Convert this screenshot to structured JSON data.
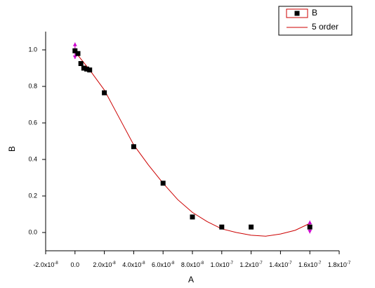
{
  "chart_data": {
    "type": "scatter",
    "x_label": "A",
    "y_label": "B",
    "xlim": [
      -2e-08,
      1.8e-07
    ],
    "ylim": [
      -0.1,
      1.1
    ],
    "xticks": [
      {
        "value": -2e-08,
        "label": "-2.0x10",
        "sup": "-8"
      },
      {
        "value": 0,
        "label": "0.0"
      },
      {
        "value": 2e-08,
        "label": "2.0x10",
        "sup": "-8"
      },
      {
        "value": 4e-08,
        "label": "4.0x10",
        "sup": "-8"
      },
      {
        "value": 6e-08,
        "label": "6.0x10",
        "sup": "-8"
      },
      {
        "value": 8e-08,
        "label": "8.0x10",
        "sup": "-8"
      },
      {
        "value": 1e-07,
        "label": "1.0x10",
        "sup": "-7"
      },
      {
        "value": 1.2e-07,
        "label": "1.2x10",
        "sup": "-7"
      },
      {
        "value": 1.4e-07,
        "label": "1.4x10",
        "sup": "-7"
      },
      {
        "value": 1.6e-07,
        "label": "1.6x10",
        "sup": "-7"
      },
      {
        "value": 1.8e-07,
        "label": "1.8x10",
        "sup": "-7"
      }
    ],
    "yticks": [
      {
        "value": 0,
        "label": "0.0"
      },
      0.2,
      0.4,
      0.6,
      0.8,
      {
        "value": 1,
        "label": "1.0"
      }
    ],
    "series": [
      {
        "name": "B",
        "style": "markers",
        "color": "#000000",
        "error_color": "#cc00cc",
        "x": [
          0,
          2e-09,
          4e-09,
          6e-09,
          8e-09,
          1e-08,
          2e-08,
          4e-08,
          6e-08,
          8e-08,
          1e-07,
          1.2e-07,
          1.6e-07
        ],
        "values": [
          0.995,
          0.98,
          0.925,
          0.9,
          0.895,
          0.89,
          0.765,
          0.47,
          0.27,
          0.085,
          0.03,
          0.03,
          0.03
        ],
        "errors": [
          0.045,
          null,
          null,
          null,
          null,
          null,
          null,
          null,
          null,
          null,
          null,
          null,
          0.035
        ]
      },
      {
        "name": "5 order",
        "style": "line",
        "color": "#cc0000",
        "x": [
          0,
          1e-08,
          2e-08,
          3e-08,
          4e-08,
          5e-08,
          6e-08,
          7e-08,
          8e-08,
          9e-08,
          1e-07,
          1.1e-07,
          1.2e-07,
          1.3e-07,
          1.4e-07,
          1.5e-07,
          1.6e-07
        ],
        "values": [
          0.99,
          0.89,
          0.78,
          0.63,
          0.48,
          0.37,
          0.27,
          0.18,
          0.11,
          0.06,
          0.02,
          0,
          -0.015,
          -0.02,
          -0.008,
          0.012,
          0.05
        ]
      }
    ],
    "legend": "upper-right"
  }
}
